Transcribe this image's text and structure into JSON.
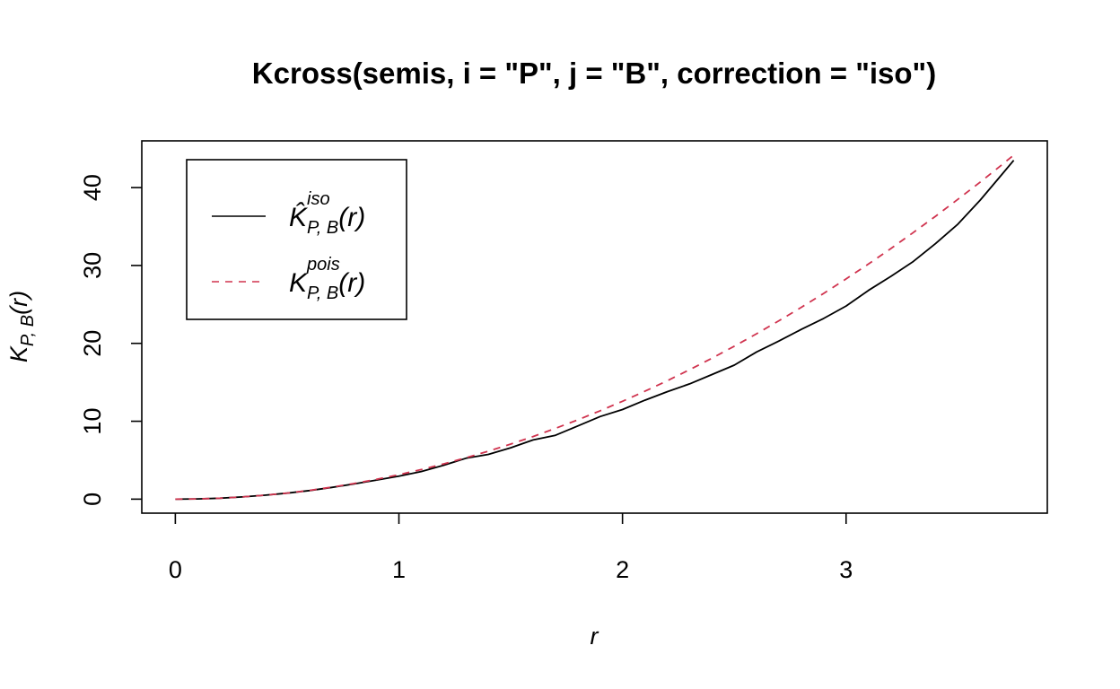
{
  "chart_data": {
    "type": "line",
    "title": "Kcross(semis, i = \"P\", j = \"B\", correction = \"iso\")",
    "xlabel": "r",
    "ylabel": {
      "main": "K",
      "sub": "P, B",
      "arg": "(r)"
    },
    "xlim": [
      -0.15,
      3.9
    ],
    "ylim": [
      -1.8,
      46
    ],
    "xticks": [
      0,
      1,
      2,
      3
    ],
    "yticks": [
      0,
      10,
      20,
      30,
      40
    ],
    "grid": false,
    "legend_position": "top-left",
    "series": [
      {
        "name": {
          "main": "K̂",
          "sup": "iso",
          "sub": "P, B",
          "arg": "(r)"
        },
        "color": "#000000",
        "dash": "solid",
        "x": [
          0,
          0.1,
          0.2,
          0.3,
          0.4,
          0.5,
          0.6,
          0.7,
          0.8,
          0.9,
          1.0,
          1.1,
          1.2,
          1.3,
          1.4,
          1.5,
          1.6,
          1.7,
          1.8,
          1.9,
          2.0,
          2.1,
          2.2,
          2.3,
          2.4,
          2.5,
          2.6,
          2.7,
          2.8,
          2.9,
          3.0,
          3.1,
          3.2,
          3.3,
          3.4,
          3.5,
          3.6,
          3.7,
          3.75
        ],
        "y": [
          0,
          0.03,
          0.12,
          0.28,
          0.5,
          0.77,
          1.1,
          1.5,
          1.95,
          2.45,
          2.95,
          3.55,
          4.35,
          5.25,
          5.75,
          6.6,
          7.6,
          8.2,
          9.4,
          10.6,
          11.5,
          12.7,
          13.8,
          14.8,
          16.0,
          17.2,
          18.9,
          20.3,
          21.8,
          23.2,
          24.8,
          26.8,
          28.6,
          30.5,
          32.8,
          35.3,
          38.4,
          41.8,
          43.5
        ]
      },
      {
        "name": {
          "main": "K",
          "sup": "pois",
          "sub": "P, B",
          "arg": "(r)"
        },
        "color": "#d0344f",
        "dash": "dashed",
        "x": [
          0,
          0.1,
          0.2,
          0.3,
          0.4,
          0.5,
          0.6,
          0.7,
          0.8,
          0.9,
          1.0,
          1.1,
          1.2,
          1.3,
          1.4,
          1.5,
          1.6,
          1.7,
          1.8,
          1.9,
          2.0,
          2.1,
          2.2,
          2.3,
          2.4,
          2.5,
          2.6,
          2.7,
          2.8,
          2.9,
          3.0,
          3.1,
          3.2,
          3.3,
          3.4,
          3.5,
          3.6,
          3.7,
          3.75
        ],
        "y": [
          0,
          0.031,
          0.126,
          0.283,
          0.503,
          0.785,
          1.131,
          1.539,
          2.011,
          2.545,
          3.142,
          3.801,
          4.524,
          5.309,
          6.158,
          7.069,
          8.042,
          9.079,
          10.179,
          11.341,
          12.566,
          13.854,
          15.205,
          16.619,
          18.096,
          19.635,
          21.237,
          22.902,
          24.63,
          26.421,
          28.274,
          30.191,
          32.17,
          34.212,
          36.317,
          38.485,
          40.715,
          43.008,
          44.179
        ]
      }
    ]
  }
}
